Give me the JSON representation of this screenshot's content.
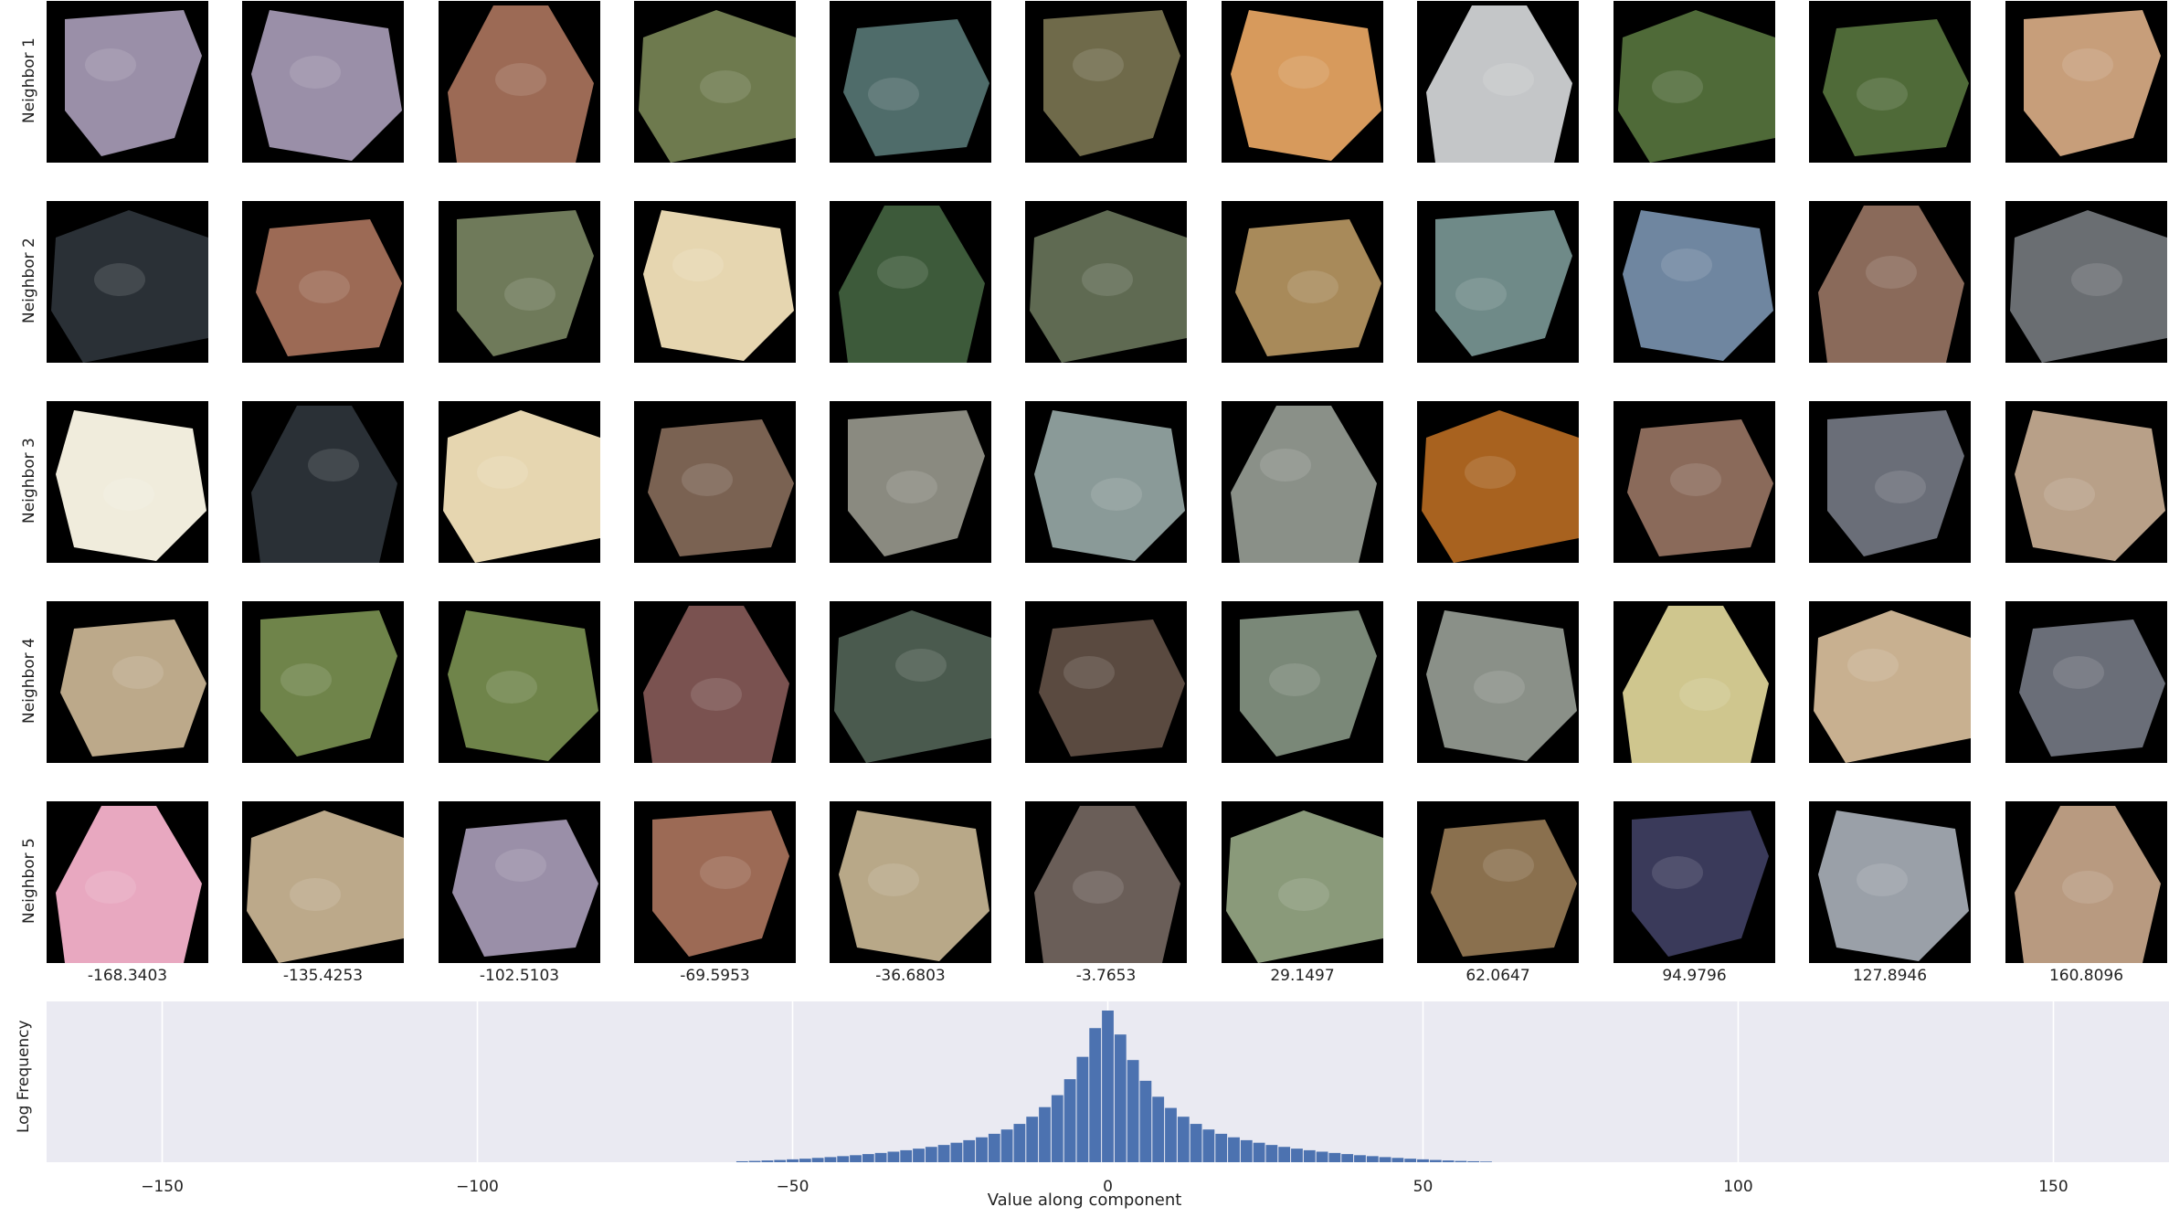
{
  "chart_data": {
    "type": "bar",
    "title": "",
    "xlabel": "Value along component",
    "ylabel": "Log Frequency",
    "xlim": [
      -168.34,
      168.34
    ],
    "xticks": [
      -150,
      -100,
      -50,
      0,
      50,
      100,
      150
    ],
    "xtick_labels": [
      "−150",
      "−100",
      "−50",
      "0",
      "50",
      "100",
      "150"
    ],
    "grid": true,
    "bin_centers": [
      -58,
      -56,
      -54,
      -52,
      -50,
      -48,
      -46,
      -44,
      -42,
      -40,
      -38,
      -36,
      -34,
      -32,
      -30,
      -28,
      -26,
      -24,
      -22,
      -20,
      -18,
      -16,
      -14,
      -12,
      -10,
      -8,
      -6,
      -4,
      -2,
      0,
      2,
      4,
      6,
      8,
      10,
      12,
      14,
      16,
      18,
      20,
      22,
      24,
      26,
      28,
      30,
      32,
      34,
      36,
      38,
      40,
      42,
      44,
      46,
      48,
      50,
      52,
      54,
      56,
      58,
      60
    ],
    "bin_heights": [
      0.6,
      0.8,
      1.1,
      1.4,
      1.8,
      2.2,
      2.7,
      3.2,
      3.8,
      4.4,
      5.1,
      5.8,
      6.6,
      7.5,
      8.5,
      9.6,
      10.8,
      12.2,
      13.8,
      15.6,
      17.8,
      20.5,
      24,
      28.5,
      34.5,
      42,
      52,
      66,
      84,
      95,
      80,
      64,
      51,
      41,
      34,
      28.5,
      24,
      20.5,
      17.8,
      15.6,
      13.8,
      12.2,
      10.8,
      9.6,
      8.5,
      7.5,
      6.6,
      5.8,
      5.1,
      4.4,
      3.8,
      3.2,
      2.7,
      2.2,
      1.8,
      1.4,
      1.1,
      0.8,
      0.6,
      0.4
    ],
    "bar_color": "#4c72b0",
    "background_color": "#eaeaf2"
  },
  "neighbors": {
    "row_labels": [
      "Neighbor 1",
      "Neighbor 2",
      "Neighbor 3",
      "Neighbor 4",
      "Neighbor 5"
    ],
    "column_values": [
      "-168.3403",
      "-135.4253",
      "-102.5103",
      "-69.5953",
      "-36.6803",
      "-3.7653",
      "29.1497",
      "62.0647",
      "94.9796",
      "127.8946",
      "160.8096"
    ],
    "tile_colors": [
      [
        "#9a8fa8",
        "#9a8fa8",
        "#9c6a55",
        "#6e7a4e",
        "#4f6c6a",
        "#6f6a4a",
        "#d79a5c",
        "#c4c6c8",
        "#4f6a38",
        "#4f6a38",
        "#c79e7a"
      ],
      [
        "#2a3036",
        "#9c6a55",
        "#6f7a5a",
        "#e6d6b0",
        "#3d5a3a",
        "#5f6a52",
        "#a88a5a",
        "#6f8a88",
        "#6f86a0",
        "#8a6a5a",
        "#6a6e72"
      ],
      [
        "#f0ecdc",
        "#2a3036",
        "#e6d6b0",
        "#7a6252",
        "#8a8a80",
        "#8a9a98",
        "#8a9088",
        "#a8621f",
        "#8a6a5a",
        "#6a6e78",
        "#b8a088"
      ],
      [
        "#bca98a",
        "#6f844a",
        "#6f844a",
        "#7a5250",
        "#4a5a4e",
        "#5a4a40",
        "#7a8878",
        "#8a9088",
        "#cfc68e",
        "#c8b090",
        "#6a6e78"
      ],
      [
        "#e8a8c0",
        "#bca98a",
        "#9a8fa8",
        "#9c6a55",
        "#b8a888",
        "#6a5e58",
        "#8a9a7a",
        "#8a704e",
        "#3a3a5a",
        "#9aa0a8",
        "#b89a80"
      ]
    ]
  }
}
